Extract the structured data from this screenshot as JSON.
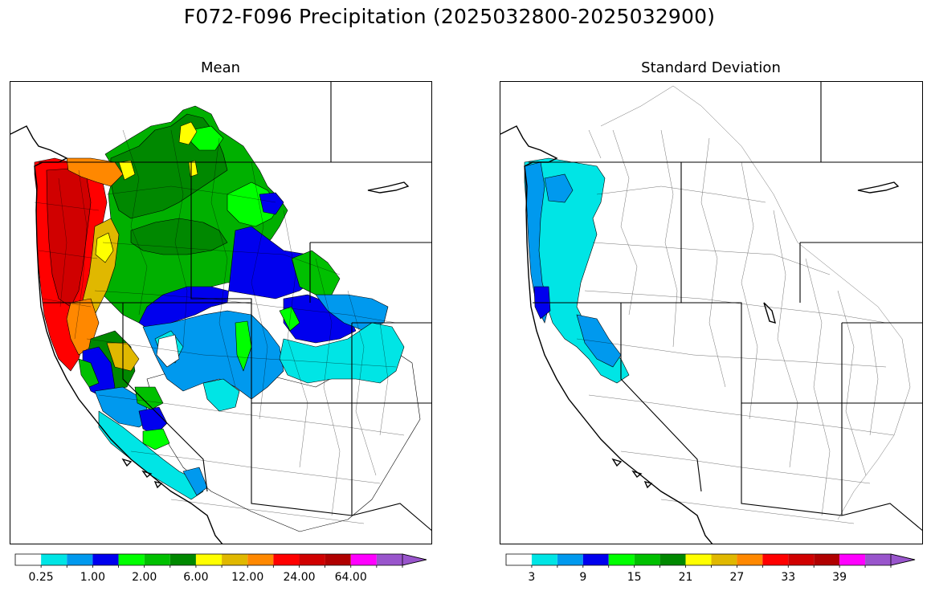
{
  "figure": {
    "title": "F072-F096 Precipitation (2025032800-2025032900)"
  },
  "panels": {
    "mean": {
      "title": "Mean",
      "colorbar": {
        "colors": [
          "#ffffff",
          "#00e5e5",
          "#0099ee",
          "#0000ee",
          "#00ff00",
          "#00c000",
          "#008800",
          "#ffff00",
          "#e0b800",
          "#ff8800",
          "#ff0000",
          "#d00000",
          "#b00000",
          "#ff00ff",
          "#9955cc"
        ],
        "tick_labels": [
          "0.25",
          "1.00",
          "2.00",
          "6.00",
          "12.00",
          "24.00",
          "64.00"
        ],
        "extend": "max"
      }
    },
    "stddev": {
      "title": "Standard Deviation",
      "colorbar": {
        "colors": [
          "#ffffff",
          "#00e5e5",
          "#0099ee",
          "#0000ee",
          "#00ff00",
          "#00c000",
          "#008800",
          "#ffff00",
          "#e0b800",
          "#ff8800",
          "#ff0000",
          "#d00000",
          "#b00000",
          "#ff00ff",
          "#9955cc"
        ],
        "tick_labels": [
          "3",
          "9",
          "15",
          "21",
          "27",
          "33",
          "39"
        ],
        "extend": "max"
      }
    }
  }
}
